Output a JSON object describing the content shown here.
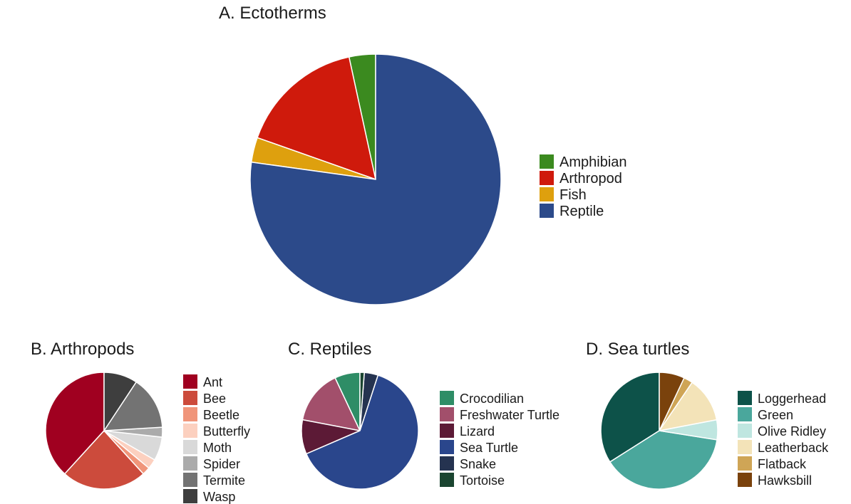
{
  "chart_data": [
    {
      "type": "pie",
      "title": "A. Ectotherms",
      "categories": [
        "Amphibian",
        "Arthropod",
        "Fish",
        "Reptile"
      ],
      "values": [
        3.4,
        16.2,
        3.2,
        77.2
      ],
      "colors": [
        "#3b8a1f",
        "#cf1a0c",
        "#dea00e",
        "#2c4a8a"
      ],
      "legend_position": "right"
    },
    {
      "type": "pie",
      "title": "B. Arthropods",
      "categories": [
        "Ant",
        "Bee",
        "Beetle",
        "Butterfly",
        "Moth",
        "Spider",
        "Termite",
        "Wasp"
      ],
      "values": [
        35.0,
        21.5,
        2.0,
        2.5,
        6.0,
        2.5,
        13.5,
        8.5
      ],
      "colors": [
        "#a00020",
        "#cc4b3c",
        "#f0957a",
        "#fcd0bf",
        "#d9d9d9",
        "#ababab",
        "#737373",
        "#3e3e3e"
      ],
      "legend_position": "right"
    },
    {
      "type": "pie",
      "title": "C. Reptiles",
      "categories": [
        "Crocodilian",
        "Freshwater Turtle",
        "Lizard",
        "Sea Turtle",
        "Snake",
        "Tortoise"
      ],
      "values": [
        7.0,
        15.0,
        9.5,
        63.5,
        3.8,
        1.2
      ],
      "colors": [
        "#2e8d66",
        "#a24f6b",
        "#5c1a36",
        "#2a468c",
        "#253350",
        "#1a4530"
      ],
      "legend_position": "right"
    },
    {
      "type": "pie",
      "title": "D. Sea turtles",
      "categories": [
        "Loggerhead",
        "Green",
        "Olive Ridley",
        "Leatherback",
        "Flatback",
        "Hawksbill"
      ],
      "values": [
        34.0,
        38.5,
        5.5,
        12.5,
        2.5,
        7.0
      ],
      "colors": [
        "#0d5249",
        "#4aa79c",
        "#bfe6e0",
        "#f3e3b8",
        "#cfa556",
        "#7a420c"
      ],
      "legend_position": "right"
    }
  ]
}
